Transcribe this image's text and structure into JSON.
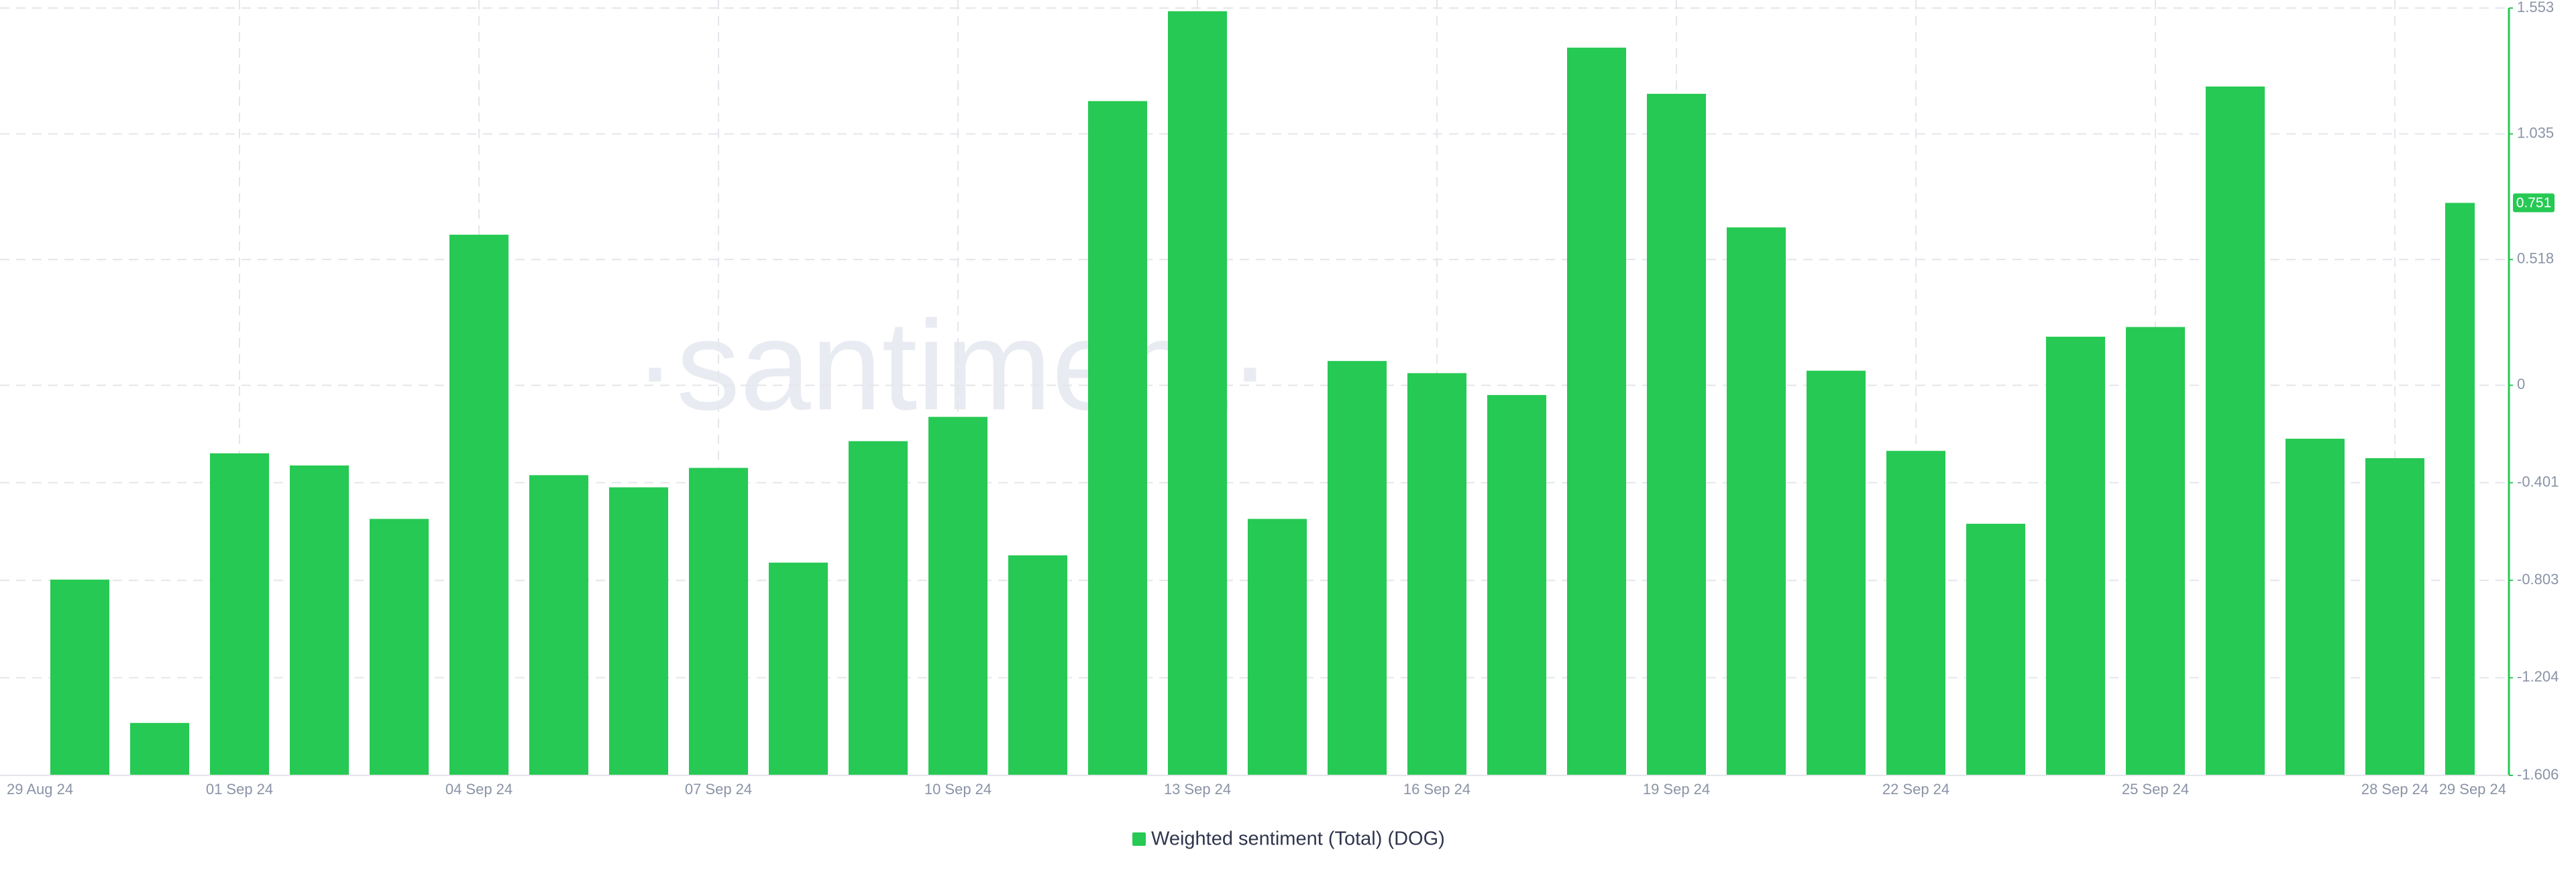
{
  "chart_data": {
    "type": "bar",
    "watermark": "·santiment·",
    "categories": [
      "29 Aug 24",
      null,
      null,
      "01 Sep 24",
      null,
      null,
      "04 Sep 24",
      null,
      null,
      "07 Sep 24",
      null,
      null,
      "10 Sep 24",
      null,
      null,
      "13 Sep 24",
      null,
      null,
      "16 Sep 24",
      null,
      null,
      "19 Sep 24",
      null,
      null,
      "22 Sep 24",
      null,
      null,
      "25 Sep 24",
      null,
      null,
      "28 Sep 24",
      "29 Sep 24"
    ],
    "series": [
      {
        "name": "Weighted sentiment (Total) (DOG)",
        "color": "#26c953",
        "values": [
          null,
          -0.8,
          -1.39,
          -0.28,
          -0.33,
          -0.55,
          0.62,
          -0.37,
          -0.42,
          -0.34,
          -0.73,
          -0.23,
          -0.13,
          -0.7,
          1.17,
          1.54,
          -0.55,
          0.1,
          0.05,
          -0.04,
          1.39,
          1.2,
          0.65,
          0.06,
          -0.27,
          -0.57,
          0.2,
          0.24,
          1.23,
          -0.22,
          -0.3,
          0.751
        ],
        "value_labels": [
          null,
          null,
          null,
          null,
          null,
          null,
          null,
          null,
          null,
          null,
          null,
          null,
          null,
          null,
          null,
          null,
          null,
          null,
          null,
          null,
          null,
          null,
          null,
          null,
          null,
          null,
          null,
          null,
          null,
          null,
          null,
          "0.751"
        ]
      }
    ],
    "ylim": [
      -1.606,
      1.553
    ],
    "yticks": [
      1.553,
      1.035,
      0.518,
      0,
      -0.401,
      -0.803,
      -1.204,
      -1.606
    ],
    "grid": true
  }
}
